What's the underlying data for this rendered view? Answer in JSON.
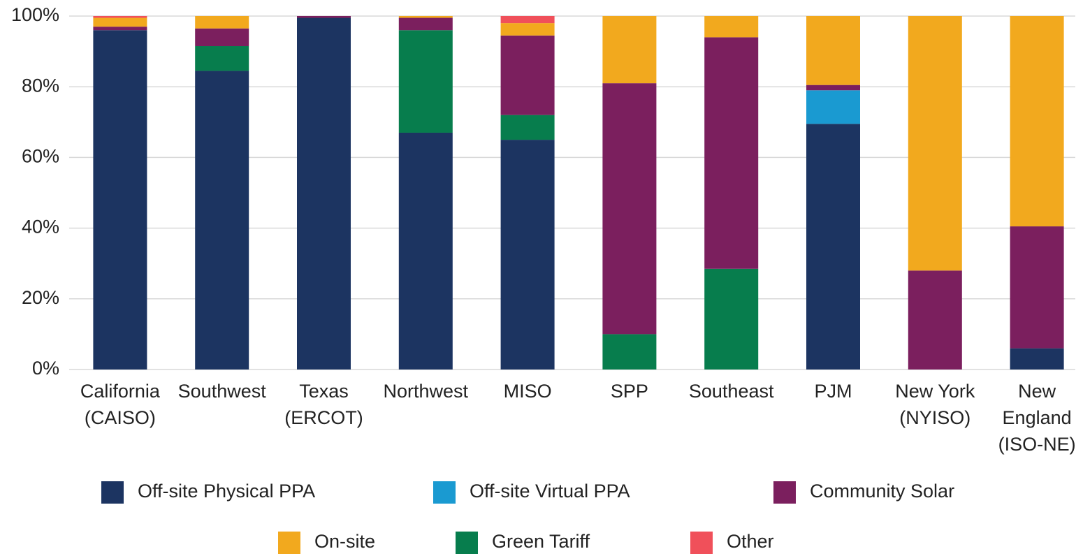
{
  "chart_data": {
    "type": "stacked_bar",
    "categories": [
      [
        "California",
        "(CAISO)"
      ],
      [
        "Southwest"
      ],
      [
        "Texas",
        "(ERCOT)"
      ],
      [
        "Northwest"
      ],
      [
        "MISO"
      ],
      [
        "SPP"
      ],
      [
        "Southeast"
      ],
      [
        "PJM"
      ],
      [
        "New York",
        "(NYISO)"
      ],
      [
        "New",
        "England",
        "(ISO-NE)"
      ]
    ],
    "series": [
      {
        "name": "Off-site Physical PPA",
        "color": "#1c3461",
        "values": [
          96,
          84.5,
          99.5,
          67,
          65,
          0,
          0,
          69.5,
          0,
          6
        ]
      },
      {
        "name": "Off-site Virtual PPA",
        "color": "#1a9ad1",
        "values": [
          0,
          0,
          0,
          0,
          0,
          0,
          0,
          9.5,
          0,
          0
        ]
      },
      {
        "name": "Green Tariff",
        "color": "#077d4d",
        "values": [
          0,
          7,
          0,
          29,
          7,
          10,
          28.5,
          0,
          0,
          0
        ]
      },
      {
        "name": "Community Solar",
        "color": "#7b1f5e",
        "values": [
          1,
          5,
          0.5,
          3.5,
          22.5,
          71,
          65.5,
          1.5,
          28,
          34.5
        ]
      },
      {
        "name": "On-site",
        "color": "#f2a91e",
        "values": [
          2.5,
          3.5,
          0,
          0.5,
          3.5,
          19,
          6,
          19.5,
          72,
          59.5
        ]
      },
      {
        "name": "Other",
        "color": "#f0505a",
        "values": [
          0.5,
          0,
          0,
          0,
          2,
          0,
          0,
          0,
          0,
          0
        ]
      }
    ],
    "ylim": [
      0,
      100
    ],
    "yticks": [
      {
        "value": 0,
        "label": "0%"
      },
      {
        "value": 20,
        "label": "20%"
      },
      {
        "value": 40,
        "label": "40%"
      },
      {
        "value": 60,
        "label": "60%"
      },
      {
        "value": 80,
        "label": "80%"
      },
      {
        "value": 100,
        "label": "100%"
      }
    ],
    "grid": true
  }
}
